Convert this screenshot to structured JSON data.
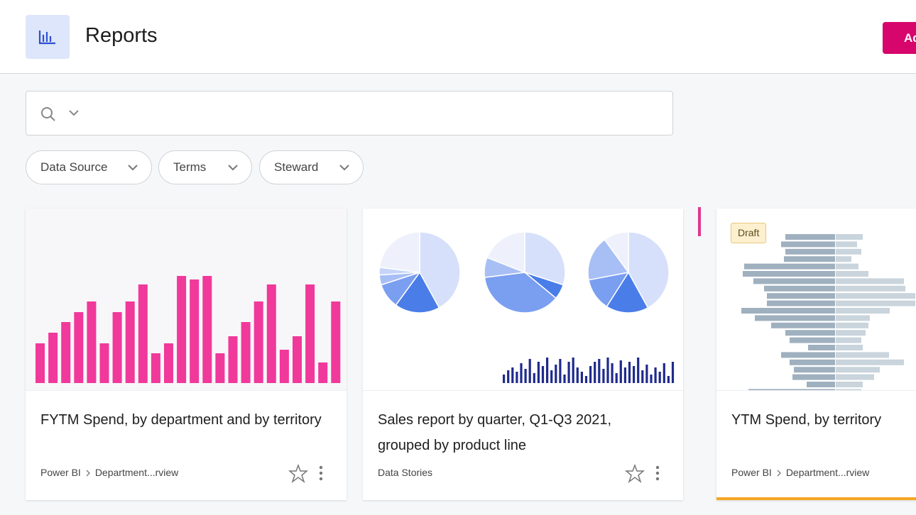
{
  "header": {
    "title": "Reports",
    "button": "Ad"
  },
  "filters": [
    "Data Source",
    "Terms",
    "Steward"
  ],
  "cards": [
    {
      "title": "FYTM Spend, by department and by territory",
      "source": "Power BI",
      "path": "Department...rview",
      "thumbnail": {
        "type": "bar",
        "color": "#f0399a",
        "values": [
          56,
          71,
          86,
          100,
          115,
          56,
          100,
          115,
          139,
          42,
          56,
          151,
          146,
          151,
          42,
          66,
          86,
          115,
          139,
          47,
          66,
          139,
          29,
          115
        ]
      }
    },
    {
      "title": "Sales report by quarter, Q1-Q3 2021, grouped by product line",
      "source": "Data Stories",
      "thumbnail": {
        "type": "pie",
        "pies": [
          {
            "values": [
              42,
              18,
              10,
              4,
              3,
              23
            ],
            "colors": [
              "#d6e0fa",
              "#4a7de8",
              "#7a9ef0",
              "#a8bff5",
              "#c5d4f8",
              "#eef1fb"
            ]
          },
          {
            "values": [
              30,
              6,
              37,
              8,
              19
            ],
            "colors": [
              "#d6e0fa",
              "#4a7de8",
              "#7a9ef0",
              "#a8bff5",
              "#eef1fb"
            ]
          },
          {
            "values": [
              42,
              17,
              13,
              18,
              10
            ],
            "colors": [
              "#d6e0fa",
              "#4a7de8",
              "#7a9ef0",
              "#a8bff5",
              "#eef1fb"
            ]
          }
        ],
        "bar_color": "#1f2a8c",
        "bars": [
          12,
          18,
          22,
          16,
          28,
          20,
          34,
          14,
          30,
          24,
          36,
          18,
          26,
          34,
          12,
          30,
          36,
          22,
          16,
          10,
          24,
          30,
          34,
          20,
          36,
          28,
          14,
          32,
          22,
          30,
          24,
          36,
          18,
          26,
          12,
          22,
          16,
          28,
          10,
          30
        ]
      }
    },
    {
      "title": "YTM Spend, by territory",
      "badge": "Draft",
      "source": "Power BI",
      "path": "Department...rview",
      "thumbnail": {
        "type": "butterfly",
        "left_color": "#9fb0bf",
        "right_color": "#c9d4dc",
        "left": [
          70,
          76,
          70,
          72,
          128,
          130,
          115,
          100,
          96,
          96,
          132,
          113,
          90,
          70,
          64,
          38,
          76,
          64,
          58,
          60,
          40,
          122
        ],
        "right": [
          38,
          30,
          36,
          22,
          32,
          46,
          96,
          98,
          112,
          112,
          76,
          48,
          46,
          42,
          36,
          38,
          75,
          96,
          62,
          54,
          38,
          36
        ]
      }
    }
  ]
}
